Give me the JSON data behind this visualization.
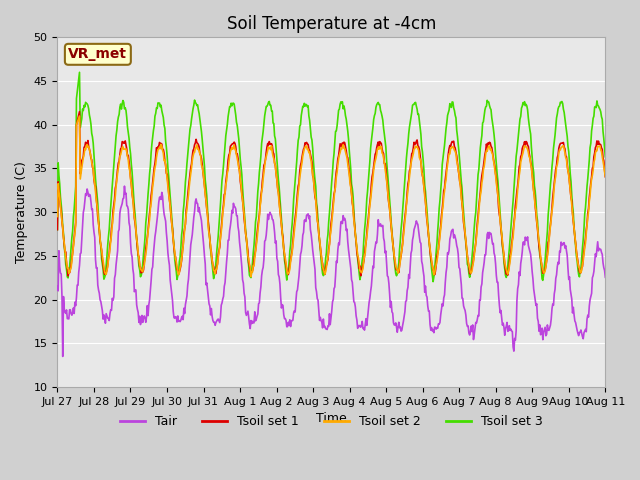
{
  "title": "Soil Temperature at -4cm",
  "xlabel": "Time",
  "ylabel": "Temperature (C)",
  "ylim": [
    10,
    50
  ],
  "yticks": [
    10,
    15,
    20,
    25,
    30,
    35,
    40,
    45,
    50
  ],
  "fig_bg_color": "#d0d0d0",
  "plot_bg_color": "#e8e8e8",
  "line_colors": {
    "Tair": "#bb44dd",
    "Tsoil set 1": "#dd0000",
    "Tsoil set 2": "#ffaa00",
    "Tsoil set 3": "#44dd00"
  },
  "legend_label_order": [
    "Tair",
    "Tsoil set 1",
    "Tsoil set 2",
    "Tsoil set 3"
  ],
  "annotation_text": "VR_met",
  "n_days": 15,
  "xtick_labels": [
    "Jul 27",
    "Jul 28",
    "Jul 29",
    "Jul 30",
    "Jul 31",
    "Aug 1",
    "Aug 2",
    "Aug 3",
    "Aug 4",
    "Aug 5",
    "Aug 6",
    "Aug 7",
    "Aug 8",
    "Aug 9",
    "Aug 10",
    "Aug 11"
  ],
  "title_fontsize": 12,
  "axis_label_fontsize": 9,
  "tick_fontsize": 8,
  "legend_fontsize": 9,
  "line_width": 1.2
}
